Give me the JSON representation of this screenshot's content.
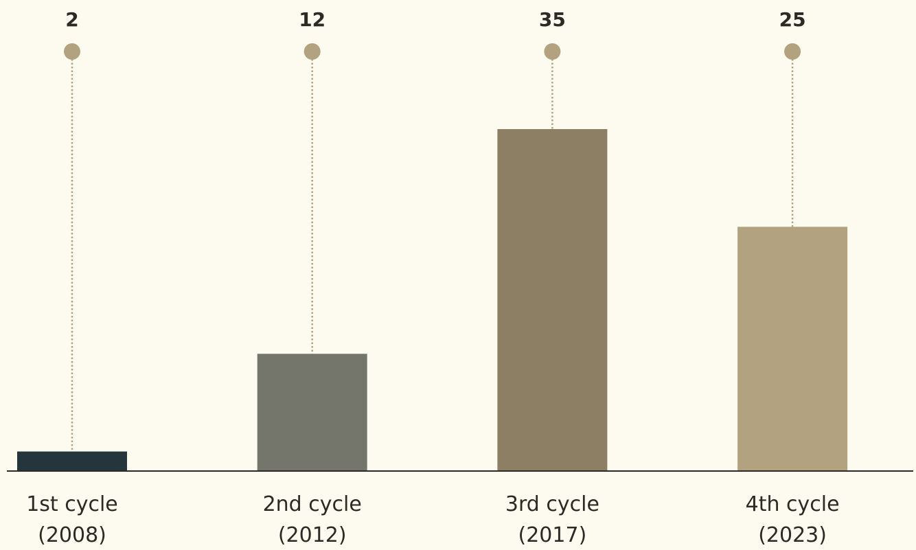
{
  "chart_data": {
    "type": "bar",
    "categories": [
      [
        "1st cycle",
        "(2008)"
      ],
      [
        "2nd cycle",
        "(2012)"
      ],
      [
        "3rd cycle",
        "(2017)"
      ],
      [
        "4th cycle",
        "(2023)"
      ]
    ],
    "values": [
      2,
      12,
      35,
      25
    ],
    "colors": [
      "#24363b",
      "#75766b",
      "#8c7f63",
      "#b3a27f"
    ],
    "marker_color": "#b3a27f"
  }
}
